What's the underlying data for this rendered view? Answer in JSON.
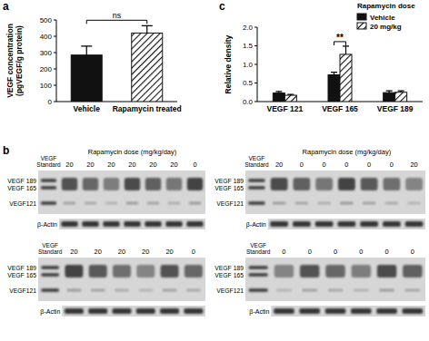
{
  "chart_data": [
    {
      "panel": "a",
      "type": "bar",
      "y_label": [
        "VEGF concentration",
        "(pgVEGF/g protein)"
      ],
      "categories": [
        "Vehicle",
        "Rapamycin treated"
      ],
      "values": [
        285,
        420
      ],
      "errors": [
        55,
        45
      ],
      "colors": [
        "#111111",
        "#111111"
      ],
      "ylim": [
        0,
        500
      ],
      "yticks": [
        0,
        100,
        200,
        300,
        400,
        500
      ],
      "annotations": [
        {
          "text": "ns",
          "from": 0,
          "to": 1
        }
      ]
    },
    {
      "panel": "c",
      "type": "bar",
      "y_label": "Relative density",
      "legend_title": "Rapamycin dose",
      "legend": "top-right",
      "categories": [
        "VEGF 121",
        "VEGF 165",
        "VEGF 189"
      ],
      "series": [
        {
          "name": "Vehicle",
          "color": "#111111",
          "values": [
            0.23,
            0.72,
            0.24
          ],
          "errors": [
            0.04,
            0.07,
            0.05
          ]
        },
        {
          "name": "20 mg/kg",
          "color": "#111111",
          "values": [
            0.17,
            1.27,
            0.25
          ],
          "errors": [
            0.02,
            0.22,
            0.04
          ]
        }
      ],
      "ylim": [
        0,
        2
      ],
      "yticks": [
        {
          "value": 0,
          "label": "0.0"
        },
        0.5,
        {
          "value": 1,
          "label": "1.0"
        },
        1.5,
        {
          "value": 2,
          "label": "2.0"
        }
      ],
      "annotations": [
        {
          "text": "**",
          "category": 1
        }
      ]
    }
  ],
  "blots": {
    "panel": "b",
    "standard_label": [
      "VEGF",
      "Standard"
    ],
    "band_labels": [
      "VEGF 189",
      "VEGF 165",
      "VEGF121"
    ],
    "actin_label": "β-Actin",
    "items": [
      {
        "title": "Rapamycin dose (mg/kg/day)",
        "lanes": [
          "20",
          "20",
          "20",
          "20",
          "20",
          "20",
          "0"
        ]
      },
      {
        "title": "Rapamycin dose (mg/kg/day)",
        "lanes": [
          "20",
          "0",
          "0",
          "0",
          "0",
          "0",
          "20"
        ]
      },
      {
        "lanes": [
          "20",
          "20",
          "20",
          "20",
          "20",
          "0"
        ]
      },
      {
        "lanes": [
          "0",
          "0",
          "0",
          "0",
          "0",
          "0"
        ]
      }
    ]
  }
}
